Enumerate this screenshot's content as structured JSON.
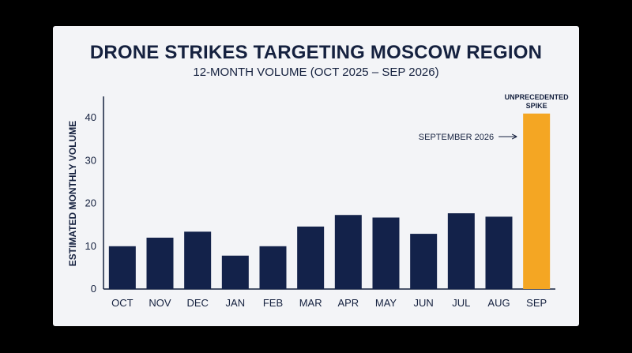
{
  "colors": {
    "background": "#000000",
    "card": "#f3f4f7",
    "bar": "#13224a",
    "highlight": "#f4a623",
    "text": "#15213f"
  },
  "chart_data": {
    "type": "bar",
    "title": "DRONE STRIKES TARGETING MOSCOW REGION",
    "subtitle": "12-MONTH VOLUME (OCT 2025 – SEP 2026)",
    "xlabel": "",
    "ylabel": "ESTIMATED MONTHLY VOLUME",
    "ylim": [
      0,
      45
    ],
    "yticks": [
      0,
      10,
      20,
      30,
      40
    ],
    "grid": false,
    "categories": [
      "OCT",
      "NOV",
      "DEC",
      "JAN",
      "FEB",
      "MAR",
      "APR",
      "MAY",
      "JUN",
      "JUL",
      "AUG",
      "SEP"
    ],
    "values": [
      10,
      12,
      13.4,
      7.8,
      10,
      14.6,
      17.3,
      16.7,
      12.9,
      17.7,
      16.9,
      41
    ],
    "highlight_index": 11,
    "annotations": {
      "spike_label": "UNPRECEDENTED SPIKE",
      "spike_label_lines": [
        "UNPRECEDENTED",
        "SPIKE"
      ],
      "callout": "SEPTEMBER 2026"
    }
  }
}
